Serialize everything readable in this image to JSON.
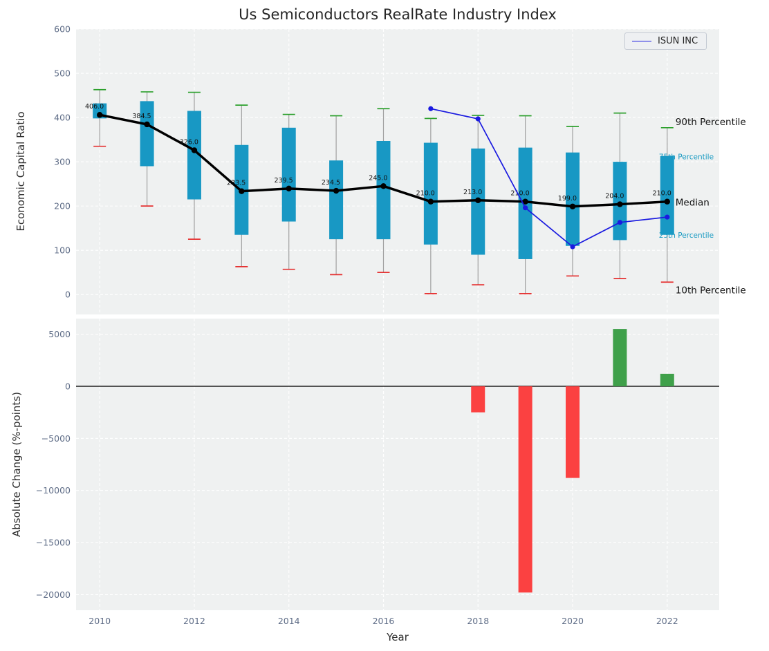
{
  "figure": {
    "title": "Us Semiconductors RealRate Industry Index",
    "background": "#ffffff",
    "axes_background": "#eff1f1",
    "grid_color": "#ffffff",
    "tick_color": "#5f6d87",
    "label_color": "#2e2e2e",
    "title_color": "#262626"
  },
  "chart_data": [
    {
      "type": "boxplot",
      "title": "Us Semiconductors RealRate Industry Index",
      "ylabel": "Economic Capital Ratio",
      "ylim": [
        0,
        600
      ],
      "yticks": [
        0,
        100,
        200,
        300,
        400,
        500,
        600
      ],
      "xticks": [
        2010,
        2012,
        2014,
        2016,
        2018,
        2020,
        2022
      ],
      "grid": true,
      "legend_position": "upper right",
      "box_color": "#1898c4",
      "whisker_color": "#a0a0a0",
      "cap_top_color": "#2ca02c",
      "cap_bottom_color": "#e53030",
      "median_color": "#000000",
      "stats": [
        {
          "year": 2010,
          "p10": 335,
          "p25": 398,
          "median": 406.0,
          "p75": 432,
          "p90": 463,
          "label": "406.0"
        },
        {
          "year": 2011,
          "p10": 200,
          "p25": 290,
          "median": 384.5,
          "p75": 437,
          "p90": 458,
          "label": "384.5"
        },
        {
          "year": 2012,
          "p10": 125,
          "p25": 215,
          "median": 326.0,
          "p75": 415,
          "p90": 457,
          "label": "326.0"
        },
        {
          "year": 2013,
          "p10": 63,
          "p25": 135,
          "median": 233.5,
          "p75": 338,
          "p90": 428,
          "label": "233.5"
        },
        {
          "year": 2014,
          "p10": 57,
          "p25": 165,
          "median": 239.5,
          "p75": 377,
          "p90": 407,
          "label": "239.5"
        },
        {
          "year": 2015,
          "p10": 45,
          "p25": 125,
          "median": 234.5,
          "p75": 303,
          "p90": 404,
          "label": "234.5"
        },
        {
          "year": 2016,
          "p10": 50,
          "p25": 125,
          "median": 245.0,
          "p75": 347,
          "p90": 420,
          "label": "245.0"
        },
        {
          "year": 2017,
          "p10": 2,
          "p25": 113,
          "median": 210.0,
          "p75": 343,
          "p90": 398,
          "label": "210.0"
        },
        {
          "year": 2018,
          "p10": 22,
          "p25": 90,
          "median": 213.0,
          "p75": 330,
          "p90": 405,
          "label": "213.0"
        },
        {
          "year": 2019,
          "p10": 2,
          "p25": 80,
          "median": 210.0,
          "p75": 332,
          "p90": 404,
          "label": "210.0"
        },
        {
          "year": 2020,
          "p10": 42,
          "p25": 110,
          "median": 199.0,
          "p75": 321,
          "p90": 380,
          "label": "199.0"
        },
        {
          "year": 2021,
          "p10": 36,
          "p25": 123,
          "median": 204.0,
          "p75": 300,
          "p90": 410,
          "label": "204.0"
        },
        {
          "year": 2022,
          "p10": 28,
          "p25": 135,
          "median": 210.0,
          "p75": 313,
          "p90": 377,
          "label": "210.0"
        }
      ],
      "company_line": {
        "name": "ISUN INC",
        "color": "#1a1ae0",
        "points": [
          [
            2017,
            420
          ],
          [
            2018,
            397
          ],
          [
            2019,
            196
          ],
          [
            2020,
            108
          ],
          [
            2021,
            163
          ],
          [
            2022,
            175
          ]
        ]
      },
      "right_annotations": [
        {
          "text": "90th Percentile",
          "value": 390,
          "color": "#111111",
          "size": 13.5,
          "clipped": false
        },
        {
          "text": "75th Percentile",
          "value": 313,
          "color": "#189ac2",
          "size": 10.5,
          "clipped": true
        },
        {
          "text": "Median",
          "value": 208,
          "color": "#111111",
          "size": 13.5,
          "clipped": false
        },
        {
          "text": "25th Percentile",
          "value": 135,
          "color": "#189ac2",
          "size": 10.5,
          "clipped": true
        },
        {
          "text": "10th Percentile",
          "value": 10,
          "color": "#111111",
          "size": 13.5,
          "clipped": false
        }
      ]
    },
    {
      "type": "bar",
      "ylabel": "Absolute Change (%-points)",
      "xlabel": "Year",
      "ylim": [
        -21500,
        6500
      ],
      "yticks": [
        {
          "value": 5000,
          "label": "5000"
        },
        {
          "value": 0,
          "label": "0"
        },
        {
          "value": -5000,
          "label": "−5000"
        },
        {
          "value": -10000,
          "label": "−10000"
        },
        {
          "value": -15000,
          "label": "−15000"
        },
        {
          "value": -20000,
          "label": "−20000"
        }
      ],
      "bars": [
        {
          "year": 2018,
          "value": -2500,
          "color": "#fb4141"
        },
        {
          "year": 2019,
          "value": -19800,
          "color": "#fb4141"
        },
        {
          "year": 2020,
          "value": -8800,
          "color": "#fb4141"
        },
        {
          "year": 2021,
          "value": 5500,
          "color": "#3fa04a"
        },
        {
          "year": 2022,
          "value": 1200,
          "color": "#3fa04a"
        }
      ],
      "zero_line_color": "#000000"
    }
  ]
}
